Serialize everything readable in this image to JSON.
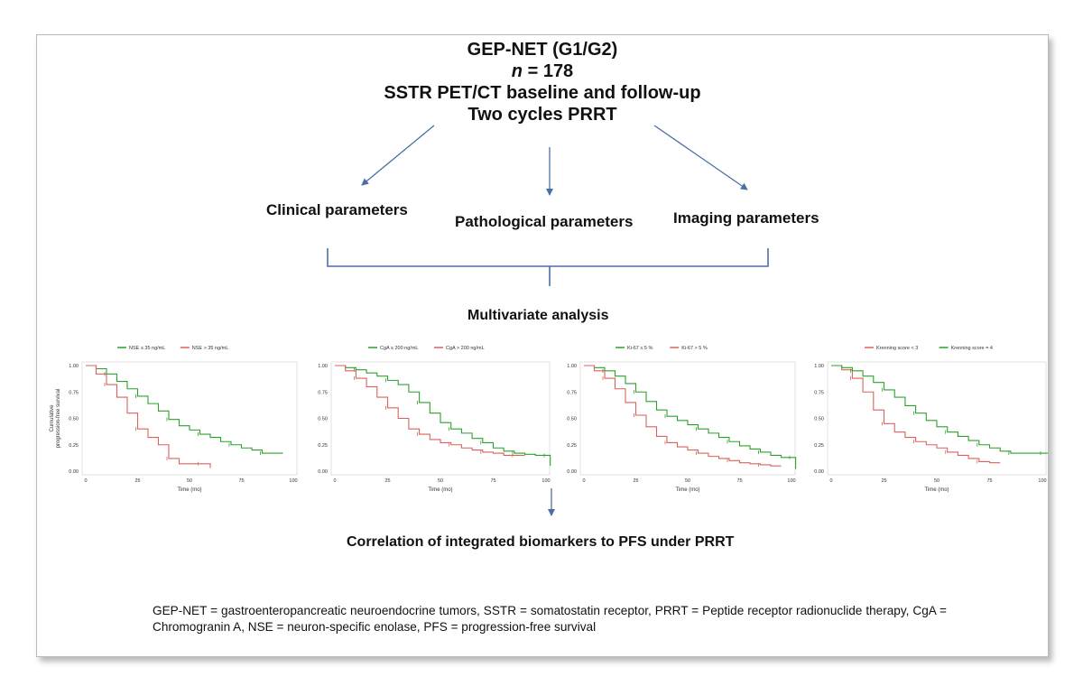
{
  "header": {
    "line1": "GEP-NET (G1/G2)",
    "n_label": "n",
    "n_value": "= 178",
    "line3": "SSTR PET/CT baseline and follow-up",
    "line4": "Two cycles PRRT"
  },
  "parameters": {
    "clinical": "Clinical parameters",
    "pathological": "Pathological parameters",
    "imaging": "Imaging parameters"
  },
  "multivariate_title": "Multivariate analysis",
  "conclusion": "Correlation of integrated biomarkers to PFS under PRRT",
  "footnote": "GEP-NET = gastroenteropancreatic neuroendocrine tumors, SSTR =  somatostatin receptor, PRRT = Peptide receptor radionuclide therapy, CgA = Chromogranin A, NSE = neuron-specific enolase, PFS = progression-free survival",
  "colors": {
    "arrow": "#4a6fa5",
    "green": "#2ca02c",
    "red": "#d9625c",
    "text": "#111111"
  },
  "chart_data": [
    {
      "type": "line",
      "xlabel": "Time (mo)",
      "ylabel": "Cumulative\nprogression-free survival",
      "xlim": [
        0,
        100
      ],
      "ylim": [
        0,
        1
      ],
      "x_ticks": [
        "0",
        "25",
        "50",
        "75",
        "100"
      ],
      "y_ticks": [
        "0.00",
        "0.25",
        "0.50",
        "0.75",
        "1.00"
      ],
      "legend_position": "top",
      "series": [
        {
          "name": "NSE ≤ 35 ng/mL",
          "color": "#2ca02c",
          "x": [
            0,
            5,
            10,
            15,
            20,
            25,
            30,
            35,
            40,
            45,
            50,
            55,
            60,
            65,
            70,
            75,
            80,
            85,
            90,
            95
          ],
          "y": [
            1.0,
            0.97,
            0.92,
            0.85,
            0.78,
            0.71,
            0.64,
            0.57,
            0.49,
            0.43,
            0.39,
            0.35,
            0.32,
            0.28,
            0.25,
            0.22,
            0.2,
            0.17,
            0.17,
            0.17
          ]
        },
        {
          "name": "NSE > 35 ng/mL",
          "color": "#d9625c",
          "x": [
            0,
            5,
            10,
            15,
            20,
            25,
            30,
            35,
            40,
            45,
            50,
            55,
            60
          ],
          "y": [
            1.0,
            0.92,
            0.82,
            0.7,
            0.55,
            0.4,
            0.32,
            0.25,
            0.12,
            0.07,
            0.07,
            0.07,
            0.03
          ]
        }
      ]
    },
    {
      "type": "line",
      "xlabel": "Time (mo)",
      "xlim": [
        0,
        100
      ],
      "ylim": [
        0,
        1
      ],
      "x_ticks": [
        "0",
        "25",
        "50",
        "75",
        "100"
      ],
      "y_ticks": [
        "0.00",
        "0.25",
        "0.50",
        "0.75",
        "1.00"
      ],
      "legend_position": "top",
      "series": [
        {
          "name": "CgA ≤ 200 ng/mL",
          "color": "#2ca02c",
          "x": [
            0,
            5,
            10,
            15,
            20,
            25,
            30,
            35,
            40,
            45,
            50,
            55,
            60,
            65,
            70,
            75,
            80,
            85,
            90,
            95,
            100,
            102
          ],
          "y": [
            1.0,
            0.98,
            0.96,
            0.93,
            0.9,
            0.86,
            0.82,
            0.75,
            0.65,
            0.55,
            0.46,
            0.4,
            0.36,
            0.31,
            0.27,
            0.22,
            0.19,
            0.17,
            0.16,
            0.15,
            0.15,
            0.05
          ]
        },
        {
          "name": "CgA > 200 ng/mL",
          "color": "#d9625c",
          "x": [
            0,
            5,
            10,
            15,
            20,
            25,
            30,
            35,
            40,
            45,
            50,
            55,
            60,
            65,
            70,
            75,
            80,
            85,
            90
          ],
          "y": [
            1.0,
            0.95,
            0.88,
            0.8,
            0.7,
            0.6,
            0.5,
            0.4,
            0.35,
            0.3,
            0.27,
            0.25,
            0.22,
            0.2,
            0.18,
            0.17,
            0.15,
            0.15,
            0.15
          ]
        }
      ]
    },
    {
      "type": "line",
      "xlabel": "Time (mo)",
      "xlim": [
        0,
        100
      ],
      "ylim": [
        0,
        1
      ],
      "x_ticks": [
        "0",
        "25",
        "50",
        "75",
        "100"
      ],
      "y_ticks": [
        "0.00",
        "0.25",
        "0.50",
        "0.75",
        "1.00"
      ],
      "legend_position": "top",
      "series": [
        {
          "name": "Ki-67 ≤ 5 %",
          "color": "#2ca02c",
          "x": [
            0,
            5,
            10,
            15,
            20,
            25,
            30,
            35,
            40,
            45,
            50,
            55,
            60,
            65,
            70,
            75,
            80,
            85,
            90,
            95,
            100,
            102
          ],
          "y": [
            1.0,
            0.98,
            0.95,
            0.9,
            0.83,
            0.75,
            0.66,
            0.58,
            0.52,
            0.48,
            0.44,
            0.4,
            0.36,
            0.32,
            0.28,
            0.24,
            0.21,
            0.18,
            0.15,
            0.13,
            0.13,
            0.02
          ]
        },
        {
          "name": "Ki-67 > 5 %",
          "color": "#d9625c",
          "x": [
            0,
            5,
            10,
            15,
            20,
            25,
            30,
            35,
            40,
            45,
            50,
            55,
            60,
            65,
            70,
            75,
            80,
            85,
            90,
            95
          ],
          "y": [
            1.0,
            0.95,
            0.88,
            0.78,
            0.65,
            0.53,
            0.42,
            0.33,
            0.27,
            0.23,
            0.2,
            0.17,
            0.14,
            0.12,
            0.1,
            0.08,
            0.07,
            0.06,
            0.05,
            0.05
          ]
        }
      ]
    },
    {
      "type": "line",
      "xlabel": "Time (mo)",
      "xlim": [
        0,
        100
      ],
      "ylim": [
        0,
        1
      ],
      "x_ticks": [
        "0",
        "25",
        "50",
        "75",
        "100"
      ],
      "y_ticks": [
        "0.00",
        "0.25",
        "0.50",
        "0.75",
        "1.00"
      ],
      "legend_position": "top",
      "series": [
        {
          "name": "Krenning score < 3",
          "color": "#d9625c",
          "x": [
            0,
            5,
            10,
            15,
            20,
            25,
            30,
            35,
            40,
            45,
            50,
            55,
            60,
            65,
            70,
            75,
            80
          ],
          "y": [
            1.0,
            0.96,
            0.88,
            0.75,
            0.58,
            0.45,
            0.37,
            0.32,
            0.28,
            0.25,
            0.22,
            0.18,
            0.15,
            0.12,
            0.09,
            0.08,
            0.08
          ]
        },
        {
          "name": "Krenning score = 4",
          "color": "#2ca02c",
          "x": [
            0,
            5,
            10,
            15,
            20,
            25,
            30,
            35,
            40,
            45,
            50,
            55,
            60,
            65,
            70,
            75,
            80,
            85,
            90,
            95,
            100,
            104
          ],
          "y": [
            1.0,
            0.98,
            0.95,
            0.9,
            0.84,
            0.77,
            0.7,
            0.62,
            0.55,
            0.48,
            0.42,
            0.37,
            0.33,
            0.29,
            0.25,
            0.22,
            0.19,
            0.17,
            0.17,
            0.17,
            0.17,
            0.02
          ]
        }
      ]
    }
  ]
}
